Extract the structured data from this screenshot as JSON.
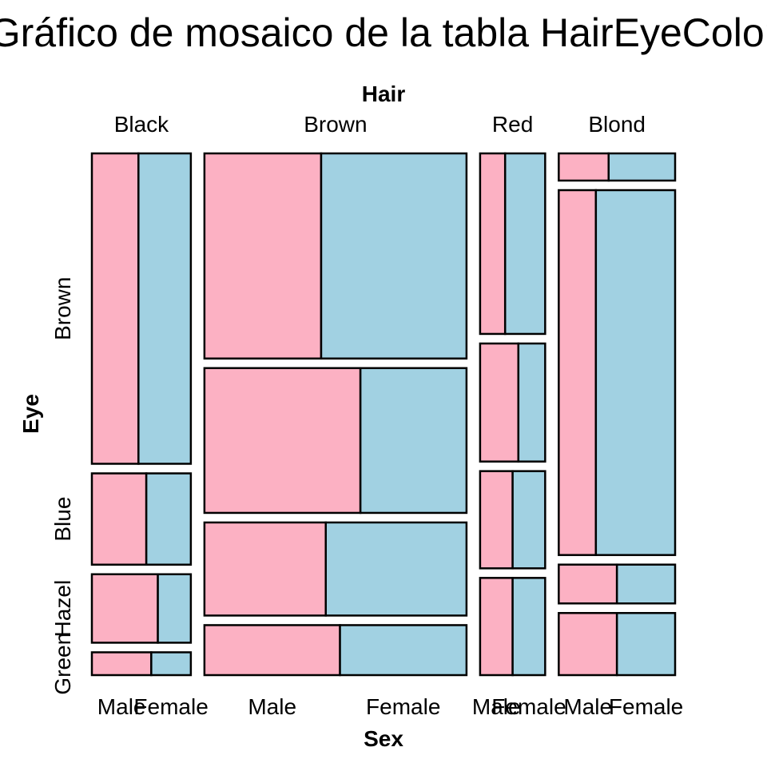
{
  "chart_data": {
    "type": "mosaic",
    "title": "Gráfico de mosaico de la tabla HairEyeColor",
    "xlabel": "Hair",
    "ylabel": "Eye",
    "xlabel2": "Sex",
    "hair": [
      "Black",
      "Brown",
      "Red",
      "Blond"
    ],
    "eye": [
      "Brown",
      "Blue",
      "Hazel",
      "Green"
    ],
    "sex": [
      "Male",
      "Female"
    ],
    "colors": {
      "Male": "#fcb1c3",
      "Female": "#a1d1e2"
    },
    "counts": {
      "Black": {
        "Brown": [
          32,
          36
        ],
        "Blue": [
          11,
          9
        ],
        "Hazel": [
          10,
          5
        ],
        "Green": [
          3,
          2
        ]
      },
      "Brown": {
        "Brown": [
          53,
          66
        ],
        "Blue": [
          50,
          34
        ],
        "Hazel": [
          25,
          29
        ],
        "Green": [
          15,
          14
        ]
      },
      "Red": {
        "Brown": [
          10,
          16
        ],
        "Blue": [
          10,
          7
        ],
        "Hazel": [
          7,
          7
        ],
        "Green": [
          7,
          7
        ]
      },
      "Blond": {
        "Brown": [
          3,
          4
        ],
        "Blue": [
          30,
          64
        ],
        "Hazel": [
          5,
          5
        ],
        "Green": [
          8,
          8
        ]
      }
    }
  }
}
